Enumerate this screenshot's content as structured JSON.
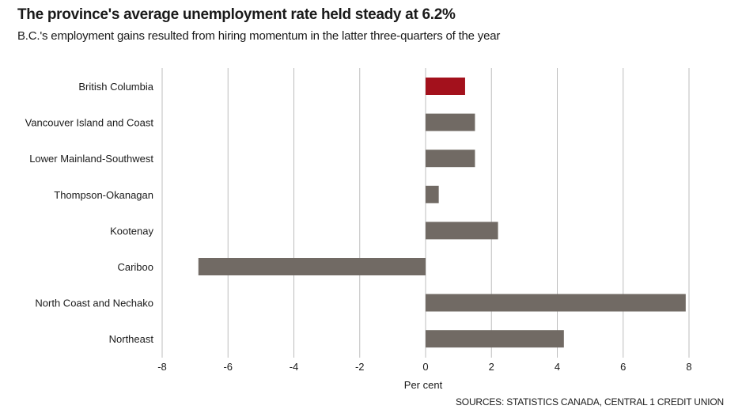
{
  "header": {
    "title": "The province's average unemployment rate held steady at 6.2%",
    "subtitle": "B.C.'s employment gains resulted from hiring momentum in the latter three-quarters of the year"
  },
  "footer": {
    "source": "SOURCES: STATISTICS CANADA, CENTRAL 1 CREDIT UNION"
  },
  "colors": {
    "highlight": "#a3111c",
    "bar": "#716a64",
    "grid": "#bdbdbd"
  },
  "chart_data": {
    "type": "bar",
    "orientation": "horizontal",
    "categories": [
      "British Columbia",
      "Vancouver Island and Coast",
      "Lower Mainland-Southwest",
      "Thompson-Okanagan",
      "Kootenay",
      "Cariboo",
      "North Coast and Nechako",
      "Northeast"
    ],
    "values": [
      1.2,
      1.5,
      1.5,
      0.4,
      2.2,
      -6.9,
      7.9,
      4.2
    ],
    "highlight_index": 0,
    "xlabel": "Per cent",
    "ylabel": "",
    "xlim": [
      -8,
      8
    ],
    "xticks": [
      -8,
      -6,
      -4,
      -2,
      0,
      2,
      4,
      6,
      8
    ],
    "grid": "vertical"
  }
}
